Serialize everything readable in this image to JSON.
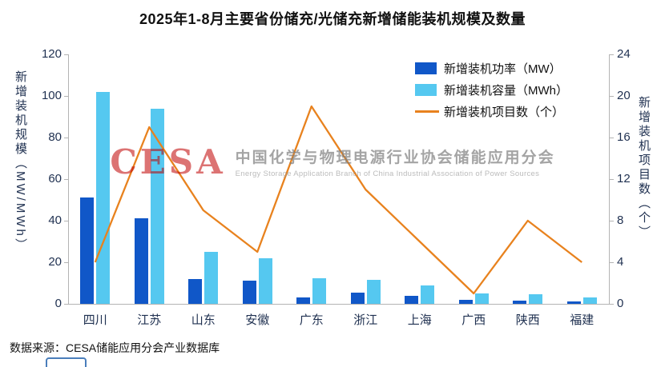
{
  "title": "2025年1-8月主要省份储充/光储充新增储能装机规模及数量",
  "legend": [
    {
      "label": "新增装机功率（MW）",
      "color": "#1057C8",
      "type": "bar"
    },
    {
      "label": "新增装机容量（MWh）",
      "color": "#55C8F0",
      "type": "bar"
    },
    {
      "label": "新增装机项目数（个）",
      "color": "#E8821E",
      "type": "line"
    }
  ],
  "axes": {
    "left_label": "新增装机规模（MW/MWh）",
    "right_label": "新增装机项目数（个）",
    "left_ticks": [
      0,
      20,
      40,
      60,
      80,
      100,
      120
    ],
    "right_ticks": [
      0,
      4,
      8,
      12,
      16,
      20,
      24
    ]
  },
  "watermark": {
    "logo": "CESA",
    "cn": "中国化学与物理电源行业协会储能应用分会",
    "en": "Energy Storage Application Branch of China Industrial Association of Power Sources"
  },
  "source": "数据来源：CESA储能应用分会产业数据库",
  "chart_data": {
    "type": "bar+line",
    "title": "2025年1-8月主要省份储充/光储充新增储能装机规模及数量",
    "categories": [
      "四川",
      "江苏",
      "山东",
      "安徽",
      "广东",
      "浙江",
      "上海",
      "广西",
      "陕西",
      "福建"
    ],
    "series": [
      {
        "name": "新增装机功率（MW）",
        "type": "bar",
        "axis": "left",
        "color": "#1057C8",
        "values": [
          51,
          41,
          12,
          11,
          3,
          5.5,
          4,
          2,
          1.5,
          1
        ]
      },
      {
        "name": "新增装机容量（MWh）",
        "type": "bar",
        "axis": "left",
        "color": "#55C8F0",
        "values": [
          102,
          94,
          25,
          22,
          12.5,
          11.5,
          9,
          5,
          4.5,
          3
        ]
      },
      {
        "name": "新增装机项目数（个）",
        "type": "line",
        "axis": "right",
        "color": "#E8821E",
        "values": [
          4,
          17,
          9,
          5,
          19,
          11,
          6,
          1,
          8,
          4
        ]
      }
    ],
    "left_axis": {
      "label": "新增装机规模（MW/MWh）",
      "min": 0,
      "max": 120
    },
    "right_axis": {
      "label": "新增装机项目数（个）",
      "min": 0,
      "max": 24
    },
    "grid": false,
    "legend_position": "top-right-inside"
  }
}
